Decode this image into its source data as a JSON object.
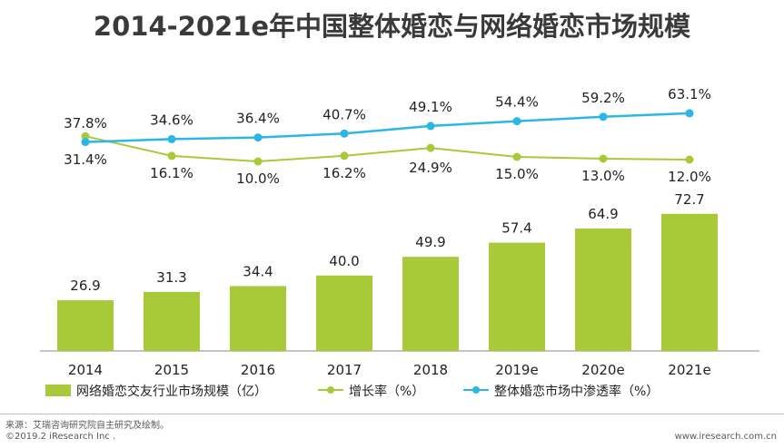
{
  "chart_data": {
    "type": "bar",
    "title": "2014-2021e年中国整体婚恋与网络婚恋市场规模",
    "categories": [
      "2014",
      "2015",
      "2016",
      "2017",
      "2018",
      "2019e",
      "2020e",
      "2021e"
    ],
    "series": [
      {
        "name": "网络婚恋交友行业市场规模（亿）",
        "type": "bar",
        "color": "#a8c938",
        "values": [
          26.9,
          31.3,
          34.4,
          40.0,
          49.9,
          57.4,
          64.9,
          72.7
        ],
        "labels": [
          "26.9",
          "31.3",
          "34.4",
          "40.0",
          "49.9",
          "57.4",
          "64.9",
          "72.7"
        ]
      },
      {
        "name": "增长率（%）",
        "type": "line",
        "color": "#a8c938",
        "values": [
          37.8,
          16.1,
          10.0,
          16.2,
          24.9,
          15.0,
          13.0,
          12.0
        ],
        "labels": [
          "37.8%",
          "16.1%",
          "10.0%",
          "16.2%",
          "24.9%",
          "15.0%",
          "13.0%",
          "12.0%"
        ]
      },
      {
        "name": "整体婚恋市场中渗透率（%）",
        "type": "line",
        "color": "#2cb6e6",
        "values": [
          31.4,
          34.6,
          36.4,
          40.7,
          49.1,
          54.4,
          59.2,
          63.1
        ],
        "labels": [
          "31.4%",
          "34.6%",
          "36.4%",
          "40.7%",
          "49.1%",
          "54.4%",
          "59.2%",
          "63.1%"
        ]
      }
    ],
    "xlabel": "",
    "ylabel": "",
    "ylim": [
      0,
      80
    ],
    "grid": false,
    "legend": "bottom"
  },
  "footer": {
    "source": "来源：艾瑞咨询研究院自主研究及绘制。",
    "copyright": "©2019.2 iResearch Inc .",
    "website": "www.iresearch.com.cn"
  }
}
